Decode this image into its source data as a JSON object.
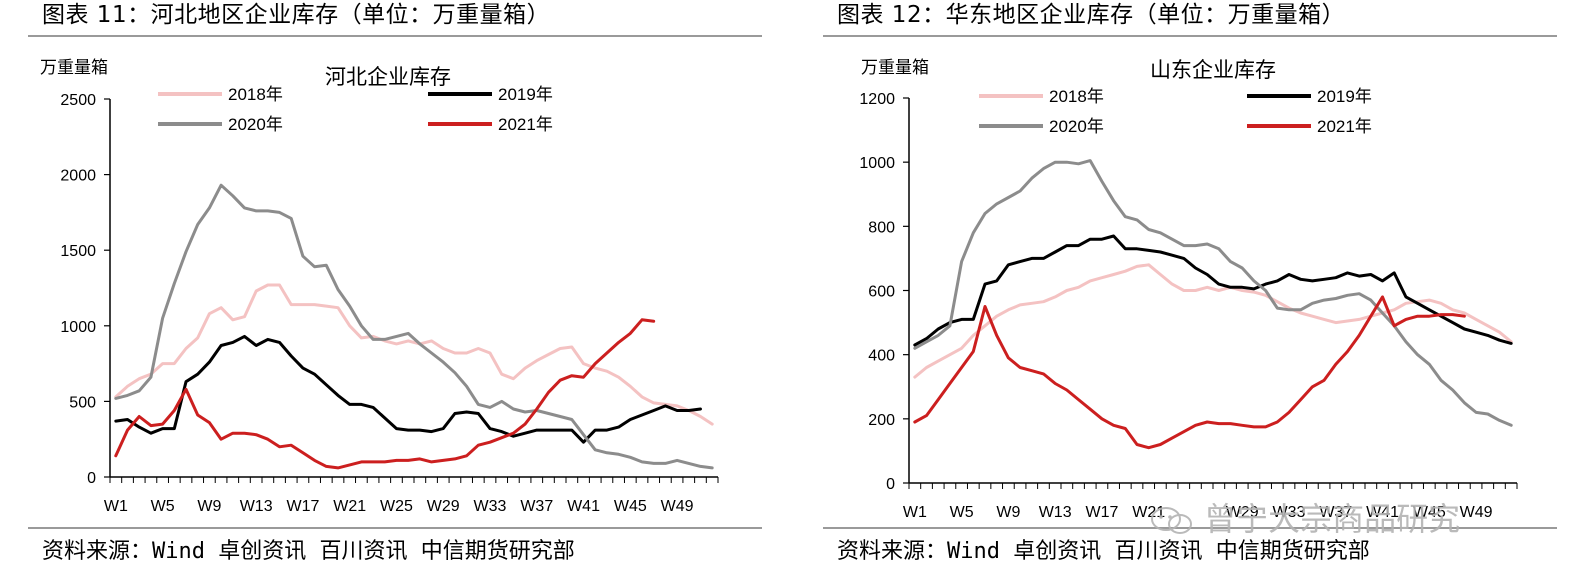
{
  "panels": [
    {
      "figure_title": "图表 11：河北地区企业库存（单位：万重量箱）",
      "source": "资料来源：Wind 卓创资讯 百川资讯 中信期货研究部",
      "chart_data": {
        "type": "line",
        "title": "河北企业库存",
        "unit_label": "万重量箱",
        "xlabel": "",
        "ylabel": "",
        "ylim": [
          0,
          2500
        ],
        "yticks": [
          0,
          500,
          1000,
          1500,
          2000,
          2500
        ],
        "x_count": 52,
        "x_tick_labels": [
          "W1",
          "W5",
          "W9",
          "W13",
          "W17",
          "W21",
          "W25",
          "W29",
          "W33",
          "W37",
          "W41",
          "W45",
          "W49"
        ],
        "grid": false,
        "legend_placement": "top",
        "series": [
          {
            "name": "2018年",
            "color": "#f4c2c2",
            "values": [
              530,
              600,
              650,
              680,
              750,
              750,
              850,
              920,
              1080,
              1120,
              1040,
              1060,
              1230,
              1270,
              1270,
              1140,
              1140,
              1140,
              1130,
              1120,
              1000,
              920,
              930,
              900,
              880,
              900,
              880,
              900,
              850,
              820,
              820,
              850,
              820,
              680,
              650,
              720,
              770,
              810,
              850,
              860,
              750,
              720,
              700,
              660,
              600,
              530,
              490,
              480,
              470,
              440,
              400,
              350
            ]
          },
          {
            "name": "2019年",
            "color": "#000000",
            "values": [
              370,
              380,
              330,
              290,
              320,
              320,
              630,
              680,
              760,
              870,
              890,
              930,
              870,
              910,
              890,
              800,
              720,
              680,
              610,
              540,
              480,
              480,
              460,
              390,
              320,
              310,
              310,
              300,
              320,
              420,
              430,
              420,
              320,
              300,
              270,
              290,
              310,
              310,
              310,
              310,
              230,
              310,
              310,
              330,
              380,
              410,
              440,
              470,
              440,
              440,
              450,
              null
            ]
          },
          {
            "name": "2020年",
            "color": "#8c8c8c",
            "values": [
              520,
              540,
              570,
              660,
              1050,
              1280,
              1490,
              1670,
              1780,
              1930,
              1860,
              1780,
              1760,
              1760,
              1750,
              1710,
              1460,
              1390,
              1400,
              1240,
              1130,
              1000,
              910,
              910,
              930,
              950,
              880,
              820,
              760,
              690,
              600,
              480,
              460,
              500,
              450,
              430,
              440,
              420,
              400,
              380,
              280,
              180,
              160,
              150,
              130,
              100,
              90,
              90,
              110,
              90,
              70,
              60
            ]
          },
          {
            "name": "2021年",
            "color": "#cc1f1f",
            "values": [
              140,
              310,
              400,
              340,
              350,
              440,
              580,
              410,
              360,
              250,
              290,
              290,
              280,
              250,
              200,
              210,
              160,
              110,
              70,
              60,
              80,
              100,
              100,
              100,
              110,
              110,
              120,
              100,
              110,
              120,
              140,
              210,
              230,
              260,
              290,
              350,
              450,
              560,
              640,
              670,
              660,
              750,
              820,
              890,
              950,
              1040,
              1030,
              null,
              null,
              null,
              null,
              null
            ]
          }
        ]
      }
    },
    {
      "figure_title": "图表 12：华东地区企业库存（单位：万重量箱）",
      "source": "资料来源：Wind 卓创资讯 百川资讯 中信期货研究部",
      "chart_data": {
        "type": "line",
        "title": "山东企业库存",
        "unit_label": "万重量箱",
        "xlabel": "",
        "ylabel": "",
        "ylim": [
          0,
          1200
        ],
        "yticks": [
          0,
          200,
          400,
          600,
          800,
          1000,
          1200
        ],
        "x_count": 52,
        "x_tick_labels": [
          "W1",
          "W5",
          "W9",
          "W13",
          "W17",
          "W21",
          "",
          "W29",
          "W33",
          "W37",
          "W41",
          "W45",
          "W49"
        ],
        "grid": false,
        "legend_placement": "top",
        "series": [
          {
            "name": "2018年",
            "color": "#f4c2c2",
            "values": [
              330,
              360,
              380,
              400,
              420,
              460,
              490,
              520,
              540,
              555,
              560,
              565,
              580,
              600,
              610,
              630,
              640,
              650,
              660,
              675,
              680,
              650,
              620,
              600,
              600,
              610,
              600,
              610,
              600,
              595,
              585,
              565,
              545,
              530,
              520,
              510,
              500,
              505,
              510,
              520,
              530,
              540,
              560,
              565,
              570,
              560,
              540,
              530,
              510,
              490,
              470,
              440
            ]
          },
          {
            "name": "2019年",
            "color": "#000000",
            "values": [
              430,
              450,
              480,
              500,
              510,
              510,
              620,
              630,
              680,
              690,
              700,
              700,
              720,
              740,
              740,
              760,
              760,
              770,
              730,
              730,
              725,
              720,
              710,
              700,
              670,
              650,
              620,
              610,
              610,
              605,
              620,
              630,
              650,
              635,
              630,
              635,
              640,
              655,
              645,
              650,
              630,
              655,
              580,
              560,
              540,
              520,
              500,
              480,
              470,
              460,
              445,
              435
            ]
          },
          {
            "name": "2020年",
            "color": "#8c8c8c",
            "values": [
              420,
              440,
              460,
              490,
              690,
              780,
              840,
              870,
              890,
              910,
              950,
              980,
              1000,
              1000,
              995,
              1005,
              940,
              880,
              830,
              820,
              790,
              780,
              760,
              740,
              740,
              745,
              730,
              690,
              670,
              630,
              600,
              545,
              540,
              540,
              560,
              570,
              575,
              585,
              590,
              570,
              530,
              490,
              440,
              400,
              370,
              320,
              290,
              250,
              220,
              215,
              195,
              180
            ]
          },
          {
            "name": "2021年",
            "color": "#cc1f1f",
            "values": [
              190,
              210,
              260,
              310,
              360,
              410,
              550,
              460,
              390,
              360,
              350,
              340,
              310,
              290,
              260,
              230,
              200,
              180,
              170,
              120,
              110,
              120,
              140,
              160,
              180,
              190,
              185,
              185,
              180,
              175,
              175,
              190,
              220,
              260,
              300,
              320,
              370,
              410,
              460,
              520,
              580,
              490,
              510,
              520,
              520,
              525,
              525,
              520,
              null,
              null,
              null,
              null
            ]
          }
        ]
      }
    }
  ],
  "watermark": {
    "text": "曾宁大宗商品研究",
    "icon": "wechat-icon"
  }
}
